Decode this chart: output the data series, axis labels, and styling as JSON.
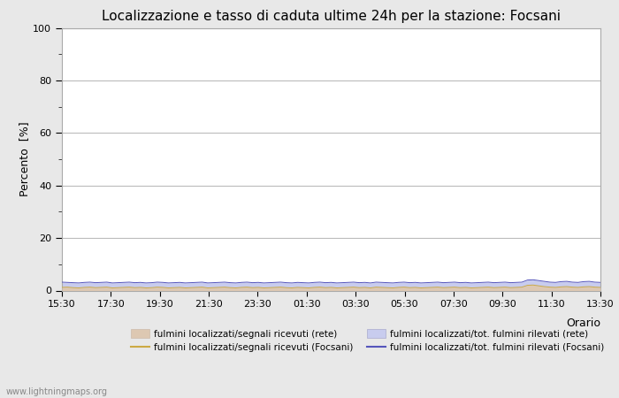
{
  "title": "Localizzazione e tasso di caduta ultime 24h per la stazione: Focsani",
  "ylabel": "Percento  [%]",
  "xlabel": "Orario",
  "ylim": [
    0,
    100
  ],
  "yticks_major": [
    0,
    20,
    40,
    60,
    80,
    100
  ],
  "yticks_minor": [
    10,
    30,
    50,
    70,
    90
  ],
  "x_labels": [
    "15:30",
    "17:30",
    "19:30",
    "21:30",
    "23:30",
    "01:30",
    "03:30",
    "05:30",
    "07:30",
    "09:30",
    "11:30",
    "13:30"
  ],
  "n_points": 97,
  "area_rete_color": "#ddc8b2",
  "area_focsani_color": "#c8ccee",
  "line_rete_color": "#ccaa44",
  "line_focsani_color": "#5555bb",
  "background_color": "#e8e8e8",
  "plot_bg_color": "#ffffff",
  "grid_color": "#bbbbbb",
  "watermark": "www.lightningmaps.org",
  "legend_labels": [
    "fulmini localizzati/segnali ricevuti (rete)",
    "fulmini localizzati/segnali ricevuti (Focsani)",
    "fulmini localizzati/tot. fulmini rilevati (rete)",
    "fulmini localizzati/tot. fulmini rilevati (Focsani)"
  ],
  "legend_colors_area": [
    "#ddc8b2",
    "#c8ccee"
  ],
  "legend_colors_line": [
    "#ccaa44",
    "#5555bb"
  ],
  "rete_area_values": [
    1.2,
    1.3,
    1.1,
    1.0,
    1.2,
    1.3,
    1.1,
    1.2,
    1.3,
    1.0,
    1.1,
    1.2,
    1.3,
    1.1,
    1.2,
    1.0,
    1.1,
    1.3,
    1.2,
    1.0,
    1.1,
    1.2,
    1.0,
    1.1,
    1.2,
    1.3,
    1.0,
    1.1,
    1.2,
    1.3,
    1.1,
    1.0,
    1.2,
    1.3,
    1.1,
    1.2,
    1.0,
    1.1,
    1.2,
    1.3,
    1.1,
    1.0,
    1.2,
    1.1,
    1.0,
    1.2,
    1.3,
    1.1,
    1.2,
    1.0,
    1.1,
    1.2,
    1.3,
    1.1,
    1.2,
    1.0,
    1.3,
    1.2,
    1.1,
    1.0,
    1.2,
    1.3,
    1.1,
    1.2,
    1.0,
    1.1,
    1.2,
    1.3,
    1.1,
    1.2,
    1.3,
    1.1,
    1.2,
    1.0,
    1.1,
    1.2,
    1.3,
    1.1,
    1.2,
    1.3,
    1.1,
    1.2,
    1.3,
    2.0,
    2.1,
    1.8,
    1.5,
    1.3,
    1.2,
    1.4,
    1.5,
    1.3,
    1.2,
    1.4,
    1.5,
    1.3,
    1.2
  ],
  "focsani_area_values": [
    3.2,
    3.1,
    3.0,
    2.9,
    3.1,
    3.2,
    3.0,
    3.1,
    3.2,
    2.9,
    3.0,
    3.1,
    3.2,
    3.0,
    3.1,
    2.9,
    3.0,
    3.2,
    3.1,
    2.9,
    3.0,
    3.1,
    2.9,
    3.0,
    3.1,
    3.2,
    2.9,
    3.0,
    3.1,
    3.2,
    3.0,
    2.9,
    3.1,
    3.2,
    3.0,
    3.1,
    2.9,
    3.0,
    3.1,
    3.2,
    3.0,
    2.9,
    3.1,
    3.0,
    2.9,
    3.1,
    3.2,
    3.0,
    3.1,
    2.9,
    3.0,
    3.1,
    3.2,
    3.0,
    3.1,
    2.9,
    3.2,
    3.1,
    3.0,
    2.9,
    3.1,
    3.2,
    3.0,
    3.1,
    2.9,
    3.0,
    3.1,
    3.2,
    3.0,
    3.1,
    3.2,
    3.0,
    3.1,
    2.9,
    3.0,
    3.1,
    3.2,
    3.0,
    3.1,
    3.2,
    3.0,
    3.1,
    3.2,
    4.0,
    4.1,
    3.8,
    3.5,
    3.2,
    3.1,
    3.4,
    3.5,
    3.2,
    3.1,
    3.4,
    3.5,
    3.2,
    3.1
  ]
}
